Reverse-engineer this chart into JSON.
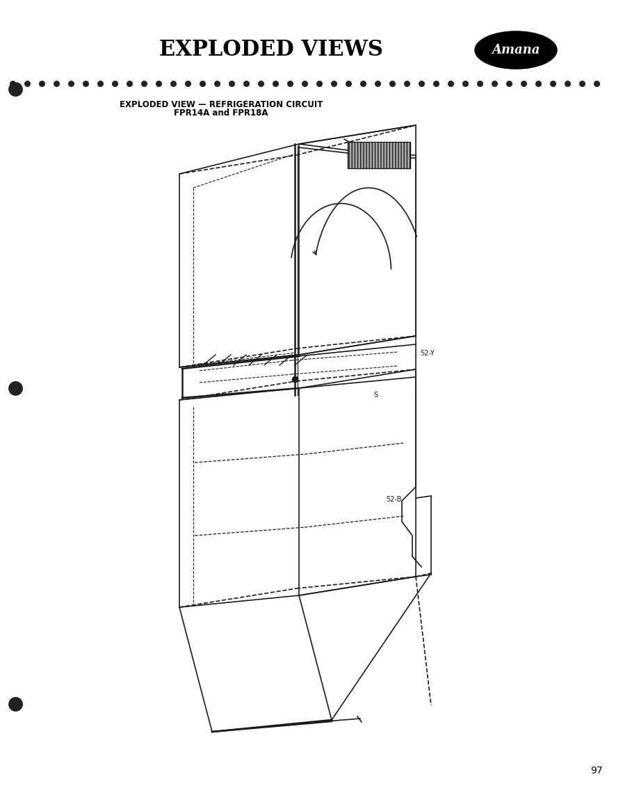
{
  "title": "EXPLODED VIEWS",
  "subtitle_line1": "EXPLODED VIEW — REFRIGERATION CIRCUIT",
  "subtitle_line2": "FPR14A and FPR18A",
  "page_number": "97",
  "brand": "Amana",
  "background_color": "#ffffff",
  "text_color": "#000000",
  "dot_color": "#222222",
  "title_fontsize": 22,
  "subtitle_fontsize": 8.5,
  "brand_fontsize": 13,
  "page_num_fontsize": 10,
  "label_52y": "52-Y",
  "label_s": "S",
  "label_52b": "52-B"
}
